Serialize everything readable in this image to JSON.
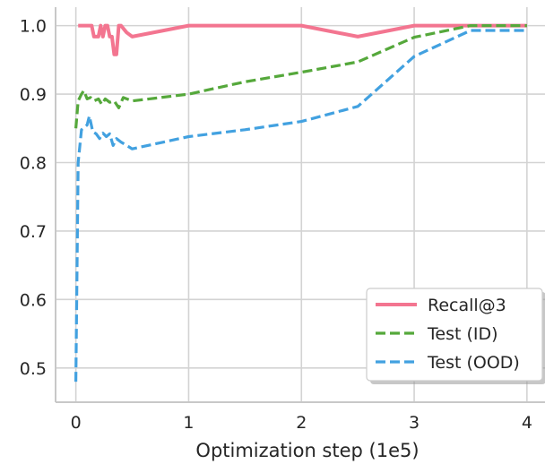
{
  "chart_data": {
    "type": "line",
    "title": "",
    "xlabel": "Optimization step (1e5)",
    "ylabel": "",
    "xlim": [
      -0.18,
      4.16
    ],
    "ylim": [
      0.45,
      1.027
    ],
    "xticks": [
      0,
      1,
      2,
      3,
      4
    ],
    "xtick_labels": [
      "0",
      "1",
      "2",
      "3",
      "4"
    ],
    "yticks": [
      0.5,
      0.6,
      0.7,
      0.8,
      0.9,
      1.0
    ],
    "ytick_labels": [
      "0.5",
      "0.6",
      "0.7",
      "0.8",
      "0.9",
      "1.0"
    ],
    "grid": true,
    "legend_position": "lower-right",
    "series": [
      {
        "name": "Recall@3",
        "color": "#f37590",
        "style": "solid",
        "x": [
          0.02,
          0.05,
          0.1,
          0.14,
          0.16,
          0.18,
          0.2,
          0.22,
          0.24,
          0.26,
          0.28,
          0.3,
          0.32,
          0.34,
          0.36,
          0.38,
          0.4,
          0.45,
          0.5,
          1.0,
          1.5,
          2.0,
          2.5,
          3.0,
          3.5,
          4.0
        ],
        "y": [
          1.0,
          1.0,
          1.0,
          1.0,
          0.984,
          0.984,
          0.984,
          1.0,
          0.984,
          1.0,
          1.0,
          0.984,
          0.984,
          0.958,
          0.958,
          1.0,
          1.0,
          0.99,
          0.984,
          1.0,
          1.0,
          1.0,
          0.984,
          1.0,
          1.0,
          1.0
        ]
      },
      {
        "name": "Test (ID)",
        "color": "#55a83b",
        "style": "dashed",
        "x": [
          0.0,
          0.02,
          0.05,
          0.07,
          0.1,
          0.13,
          0.16,
          0.2,
          0.23,
          0.26,
          0.3,
          0.34,
          0.38,
          0.42,
          0.5,
          1.0,
          1.5,
          2.0,
          2.5,
          3.0,
          3.5,
          4.0
        ],
        "y": [
          0.85,
          0.89,
          0.9,
          0.905,
          0.893,
          0.895,
          0.89,
          0.893,
          0.885,
          0.893,
          0.888,
          0.89,
          0.88,
          0.895,
          0.89,
          0.9,
          0.918,
          0.932,
          0.947,
          0.983,
          1.0,
          1.0
        ]
      },
      {
        "name": "Test (OOD)",
        "color": "#42a1e0",
        "style": "dashed",
        "x": [
          0.0,
          0.02,
          0.05,
          0.1,
          0.12,
          0.15,
          0.18,
          0.21,
          0.24,
          0.27,
          0.3,
          0.33,
          0.36,
          0.4,
          0.5,
          1.0,
          1.5,
          2.0,
          2.5,
          3.0,
          3.5,
          4.0
        ],
        "y": [
          0.48,
          0.8,
          0.848,
          0.855,
          0.868,
          0.845,
          0.842,
          0.835,
          0.843,
          0.838,
          0.842,
          0.825,
          0.835,
          0.83,
          0.82,
          0.838,
          0.848,
          0.86,
          0.882,
          0.955,
          0.993,
          0.993
        ]
      }
    ]
  }
}
